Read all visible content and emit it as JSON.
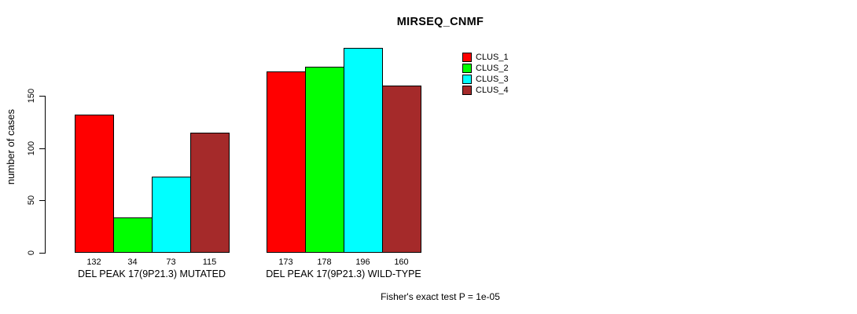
{
  "chart_data": {
    "type": "bar",
    "title": "MIRSEQ_CNMF",
    "ylabel": "number of cases",
    "xlabel": "",
    "yticks": [
      0,
      50,
      100,
      150
    ],
    "ylim": [
      0,
      205
    ],
    "grid": false,
    "legend_position": "top-right",
    "legend": {
      "entries": [
        {
          "label": "CLUS_1",
          "color": "#FF0000"
        },
        {
          "label": "CLUS_2",
          "color": "#00FF00"
        },
        {
          "label": "CLUS_3",
          "color": "#00FFFF"
        },
        {
          "label": "CLUS_4",
          "color": "#A52A2A"
        }
      ]
    },
    "groups": [
      {
        "label": "DEL PEAK 17(9P21.3) MUTATED",
        "values": [
          132,
          34,
          73,
          115
        ]
      },
      {
        "label": "DEL PEAK 17(9P21.3) WILD-TYPE",
        "values": [
          173,
          178,
          196,
          160
        ]
      }
    ],
    "series": [
      {
        "name": "CLUS_1",
        "values": [
          132,
          173
        ]
      },
      {
        "name": "CLUS_2",
        "values": [
          34,
          178
        ]
      },
      {
        "name": "CLUS_3",
        "values": [
          73,
          196
        ]
      },
      {
        "name": "CLUS_4",
        "values": [
          115,
          160
        ]
      }
    ],
    "annotation": "Fisher's exact test P = 1e-05"
  }
}
